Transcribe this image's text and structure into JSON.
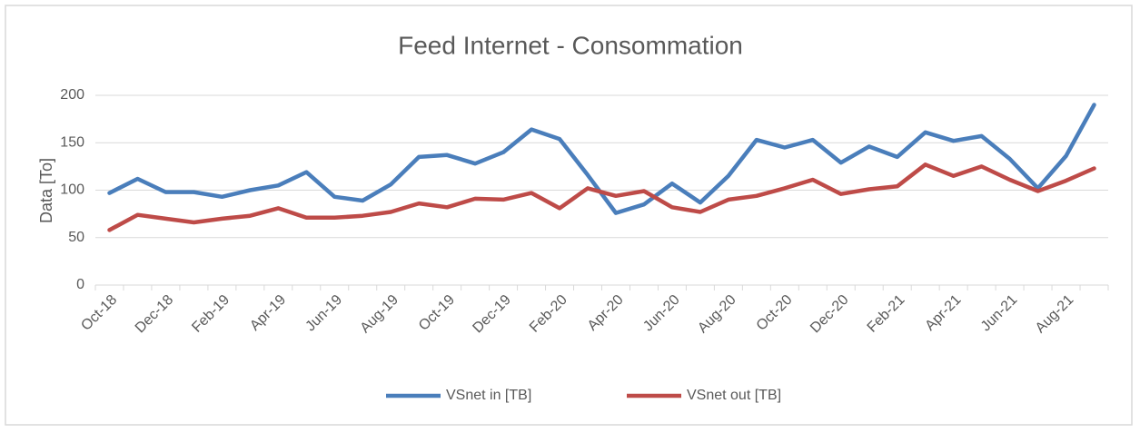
{
  "chart_data": {
    "type": "line",
    "title": "Feed Internet - Consommation",
    "y_label": "Data [To]",
    "categories": [
      "Oct-18",
      null,
      "Dec-18",
      null,
      "Feb-19",
      null,
      "Apr-19",
      null,
      "Jun-19",
      null,
      "Aug-19",
      null,
      "Oct-19",
      null,
      "Dec-19",
      null,
      "Feb-20",
      null,
      "Apr-20",
      null,
      "Jun-20",
      null,
      "Aug-20",
      null,
      "Oct-20",
      null,
      "Dec-20",
      null,
      "Feb-21",
      null,
      "Apr-21",
      null,
      "Jun-21",
      null,
      "Aug-21",
      null
    ],
    "series": [
      {
        "name": "VSnet in [TB]",
        "color": "#4a7ebb",
        "values": [
          97,
          112,
          98,
          98,
          93,
          100,
          105,
          119,
          93,
          89,
          106,
          135,
          137,
          128,
          140,
          164,
          154,
          116,
          76,
          85,
          107,
          87,
          115,
          153,
          145,
          153,
          129,
          146,
          135,
          161,
          152,
          157,
          133,
          102,
          136,
          190
        ]
      },
      {
        "name": "VSnet out [TB]",
        "color": "#be4b48",
        "values": [
          58,
          74,
          70,
          66,
          70,
          73,
          81,
          71,
          71,
          73,
          77,
          86,
          82,
          91,
          90,
          97,
          81,
          102,
          94,
          99,
          82,
          77,
          90,
          94,
          102,
          111,
          96,
          101,
          104,
          127,
          115,
          125,
          111,
          99,
          110,
          123
        ]
      }
    ],
    "ylim": [
      0,
      200
    ],
    "yticks": [
      0,
      50,
      100,
      150,
      200
    ],
    "grid": true,
    "legend": "bottom"
  }
}
